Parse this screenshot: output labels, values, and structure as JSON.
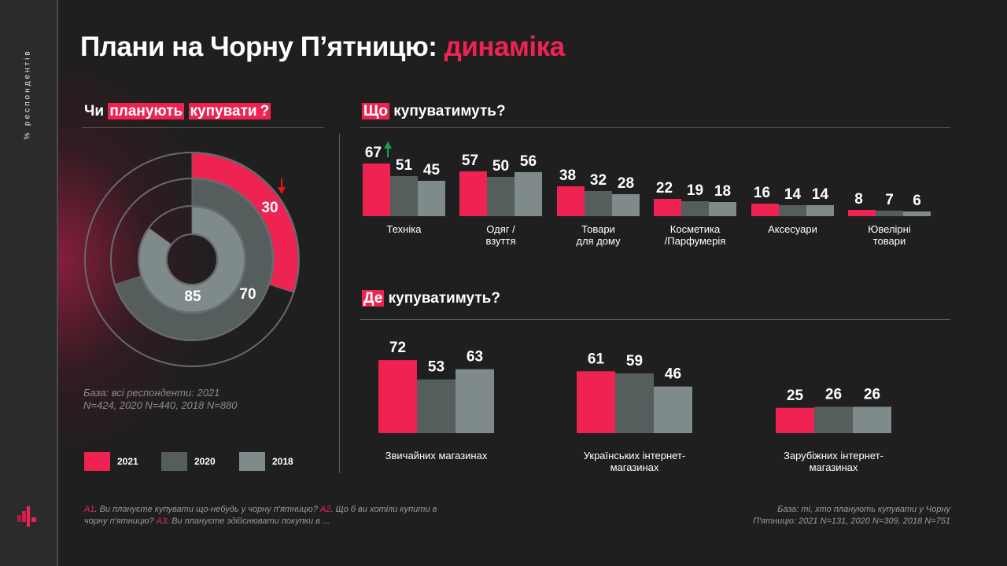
{
  "sidebar": {
    "label": "% респондентів",
    "logo_icon": "bar-logo-icon"
  },
  "title": {
    "main": "Плани на Чорну П’ятницю: ",
    "accent": "динаміка"
  },
  "colors": {
    "y2021": "#ee2352",
    "y2020": "#555d5d",
    "y2018": "#7f8a8a",
    "accent": "#ee2352",
    "up_arrow": "#1aa34a",
    "down_arrow": "#e8161b"
  },
  "sections": {
    "plan": {
      "plain_prefix": "Чи ",
      "hl1": "планують",
      "hl2": "купувати",
      "suffix": "?"
    },
    "what": {
      "hl": "Що",
      "rest": " купуватимуть?"
    },
    "where": {
      "hl": "Де",
      "rest": " купуватимуть?"
    }
  },
  "base_note_left": [
    "База: всі респонденти: 2021",
    "N=424, 2020 N=440, 2018 N=880"
  ],
  "legend": [
    {
      "label": "2021",
      "color_key": "y2021"
    },
    {
      "label": "2020",
      "color_key": "y2020"
    },
    {
      "label": "2018",
      "color_key": "y2018"
    }
  ],
  "footnote": {
    "q1": "А1",
    "t1": ". Ви плануєте купувати що-небудь у чорну п'ятницю? ",
    "q2": "А2",
    "t2": ". Що б ви хотіли купити в чорну п'ятницю? ",
    "q3": "А3",
    "t3": ". Ви плануєте здійснювати покупки в ..."
  },
  "base_note_right": [
    "База: ті, хто планують купувати у Чорну",
    "П'ятницю: 2021 N=131, 2020 N=309, 2018 N=751"
  ],
  "chart_data": [
    {
      "type": "pie",
      "subtype": "nested-donut",
      "title": "Чи планують купувати?",
      "series": [
        {
          "name": "2021",
          "value": 30,
          "trend": "down"
        },
        {
          "name": "2020",
          "value": 70
        },
        {
          "name": "2018",
          "value": 85
        }
      ],
      "unit": "% респондентів"
    },
    {
      "type": "bar",
      "title": "Що купуватимуть?",
      "categories": [
        "Техніка",
        "Одяг /\nвзуття",
        "Товари\nдля дому",
        "Косметика\n/Парфумерія",
        "Аксесуари",
        "Ювелірні\nтовари"
      ],
      "series": [
        {
          "name": "2021",
          "values": [
            67,
            57,
            38,
            22,
            16,
            8
          ]
        },
        {
          "name": "2020",
          "values": [
            51,
            50,
            32,
            19,
            14,
            7
          ]
        },
        {
          "name": "2018",
          "values": [
            45,
            56,
            28,
            18,
            14,
            6
          ]
        }
      ],
      "annotations": [
        {
          "category": "Техніка",
          "series": "2021",
          "mark": "up-arrow"
        }
      ]
    },
    {
      "type": "bar",
      "title": "Де купуватимуть?",
      "categories": [
        "Звичайних  магазинах",
        "Українських  інтернет-\nмагазинах",
        "Зарубіжних  інтернет-\nмагазинах"
      ],
      "series": [
        {
          "name": "2021",
          "values": [
            72,
            61,
            25
          ]
        },
        {
          "name": "2020",
          "values": [
            53,
            59,
            26
          ]
        },
        {
          "name": "2018",
          "values": [
            63,
            46,
            26
          ]
        }
      ]
    }
  ]
}
